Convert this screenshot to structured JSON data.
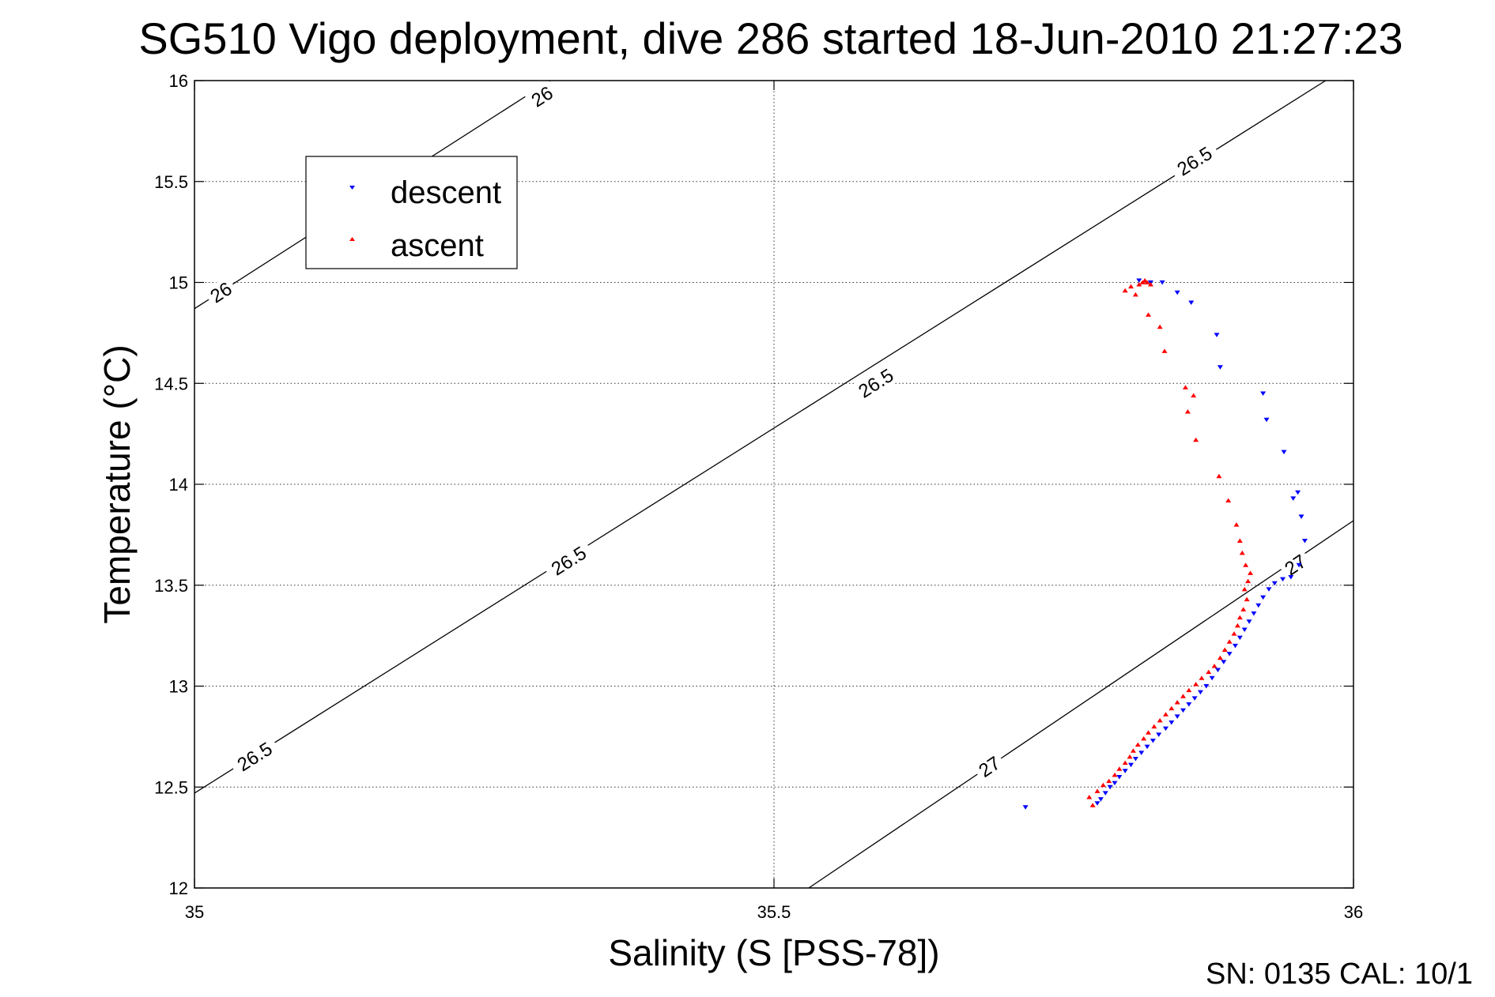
{
  "chart_data": {
    "type": "scatter",
    "title": "SG510 Vigo deployment, dive 286 started 18-Jun-2010 21:27:23",
    "xlabel": "Salinity (S [PSS-78])",
    "ylabel": "Temperature (°C)",
    "xlim": [
      35,
      36
    ],
    "ylim": [
      12,
      16
    ],
    "xticks": [
      35,
      35.5,
      36
    ],
    "xtick_labels": [
      "35",
      "35.5",
      "36"
    ],
    "yticks": [
      12,
      12.5,
      13,
      13.5,
      14,
      14.5,
      15,
      15.5,
      16
    ],
    "ytick_labels": [
      "12",
      "12.5",
      "13",
      "13.5",
      "14",
      "14.5",
      "15",
      "15.5",
      "16"
    ],
    "grid": true,
    "legend_position": "top-left",
    "footer": "SN: 0135  CAL: 10/1",
    "density_contours": [
      {
        "label": "26",
        "points": [
          [
            35.0,
            14.87
          ],
          [
            35.307,
            16.0
          ]
        ],
        "label_positions": [
          [
            35.023,
            14.95
          ],
          [
            35.3,
            15.92
          ]
        ]
      },
      {
        "label": "26.5",
        "points": [
          [
            35.0,
            12.47
          ],
          [
            35.976,
            16.0
          ]
        ],
        "label_positions": [
          [
            35.052,
            12.65
          ],
          [
            35.323,
            13.62
          ],
          [
            35.588,
            14.5
          ],
          [
            35.863,
            15.6
          ]
        ]
      },
      {
        "label": "27",
        "points": [
          [
            35.53,
            12.0
          ],
          [
            36.0,
            13.82
          ]
        ],
        "label_positions": [
          [
            35.686,
            12.6
          ],
          [
            35.95,
            13.6
          ]
        ]
      }
    ],
    "series": [
      {
        "name": "descent",
        "color": "#0000ff",
        "marker": "triangle-down",
        "points": [
          [
            35.717,
            12.4
          ],
          [
            35.779,
            12.42
          ],
          [
            35.782,
            12.44
          ],
          [
            35.786,
            12.47
          ],
          [
            35.79,
            12.5
          ],
          [
            35.794,
            12.52
          ],
          [
            35.798,
            12.55
          ],
          [
            35.803,
            12.58
          ],
          [
            35.808,
            12.61
          ],
          [
            35.812,
            12.64
          ],
          [
            35.817,
            12.67
          ],
          [
            35.822,
            12.7
          ],
          [
            35.827,
            12.73
          ],
          [
            35.832,
            12.76
          ],
          [
            35.838,
            12.79
          ],
          [
            35.843,
            12.82
          ],
          [
            35.848,
            12.85
          ],
          [
            35.853,
            12.88
          ],
          [
            35.858,
            12.91
          ],
          [
            35.863,
            12.94
          ],
          [
            35.868,
            12.97
          ],
          [
            35.873,
            13.0
          ],
          [
            35.878,
            13.04
          ],
          [
            35.883,
            13.08
          ],
          [
            35.888,
            13.12
          ],
          [
            35.893,
            13.16
          ],
          [
            35.898,
            13.2
          ],
          [
            35.902,
            13.24
          ],
          [
            35.906,
            13.28
          ],
          [
            35.91,
            13.32
          ],
          [
            35.914,
            13.36
          ],
          [
            35.918,
            13.4
          ],
          [
            35.922,
            13.44
          ],
          [
            35.927,
            13.48
          ],
          [
            35.932,
            13.51
          ],
          [
            35.939,
            13.53
          ],
          [
            35.946,
            13.54
          ],
          [
            35.953,
            13.6
          ],
          [
            35.958,
            13.72
          ],
          [
            35.955,
            13.84
          ],
          [
            35.948,
            13.93
          ],
          [
            35.952,
            13.96
          ],
          [
            35.94,
            14.16
          ],
          [
            35.925,
            14.32
          ],
          [
            35.922,
            14.45
          ],
          [
            35.885,
            14.58
          ],
          [
            35.882,
            14.74
          ],
          [
            35.86,
            14.9
          ],
          [
            35.848,
            14.95
          ],
          [
            35.835,
            15.0
          ],
          [
            35.825,
            15.0
          ],
          [
            35.815,
            15.01
          ]
        ]
      },
      {
        "name": "ascent",
        "color": "#ff0000",
        "marker": "triangle-up",
        "points": [
          [
            35.775,
            12.41
          ],
          [
            35.772,
            12.45
          ],
          [
            35.779,
            12.48
          ],
          [
            35.784,
            12.51
          ],
          [
            35.789,
            12.53
          ],
          [
            35.794,
            12.56
          ],
          [
            35.798,
            12.59
          ],
          [
            35.803,
            12.62
          ],
          [
            35.807,
            12.65
          ],
          [
            35.81,
            12.68
          ],
          [
            35.814,
            12.71
          ],
          [
            35.819,
            12.74
          ],
          [
            35.823,
            12.77
          ],
          [
            35.828,
            12.8
          ],
          [
            35.833,
            12.83
          ],
          [
            35.838,
            12.86
          ],
          [
            35.843,
            12.89
          ],
          [
            35.848,
            12.92
          ],
          [
            35.853,
            12.95
          ],
          [
            35.858,
            12.98
          ],
          [
            35.864,
            13.01
          ],
          [
            35.869,
            13.04
          ],
          [
            35.875,
            13.07
          ],
          [
            35.88,
            13.1
          ],
          [
            35.885,
            13.14
          ],
          [
            35.889,
            13.18
          ],
          [
            35.893,
            13.22
          ],
          [
            35.897,
            13.26
          ],
          [
            35.9,
            13.3
          ],
          [
            35.902,
            13.34
          ],
          [
            35.905,
            13.38
          ],
          [
            35.908,
            13.43
          ],
          [
            35.906,
            13.48
          ],
          [
            35.909,
            13.52
          ],
          [
            35.911,
            13.56
          ],
          [
            35.907,
            13.6
          ],
          [
            35.904,
            13.66
          ],
          [
            35.902,
            13.72
          ],
          [
            35.899,
            13.8
          ],
          [
            35.892,
            13.92
          ],
          [
            35.884,
            14.04
          ],
          [
            35.864,
            14.22
          ],
          [
            35.857,
            14.36
          ],
          [
            35.862,
            14.44
          ],
          [
            35.855,
            14.48
          ],
          [
            35.837,
            14.66
          ],
          [
            35.833,
            14.78
          ],
          [
            35.823,
            14.84
          ],
          [
            35.812,
            14.94
          ],
          [
            35.803,
            14.96
          ],
          [
            35.808,
            14.98
          ],
          [
            35.815,
            14.99
          ],
          [
            35.818,
            15.0
          ],
          [
            35.82,
            15.01
          ],
          [
            35.822,
            15.0
          ],
          [
            35.825,
            14.99
          ]
        ]
      }
    ]
  }
}
